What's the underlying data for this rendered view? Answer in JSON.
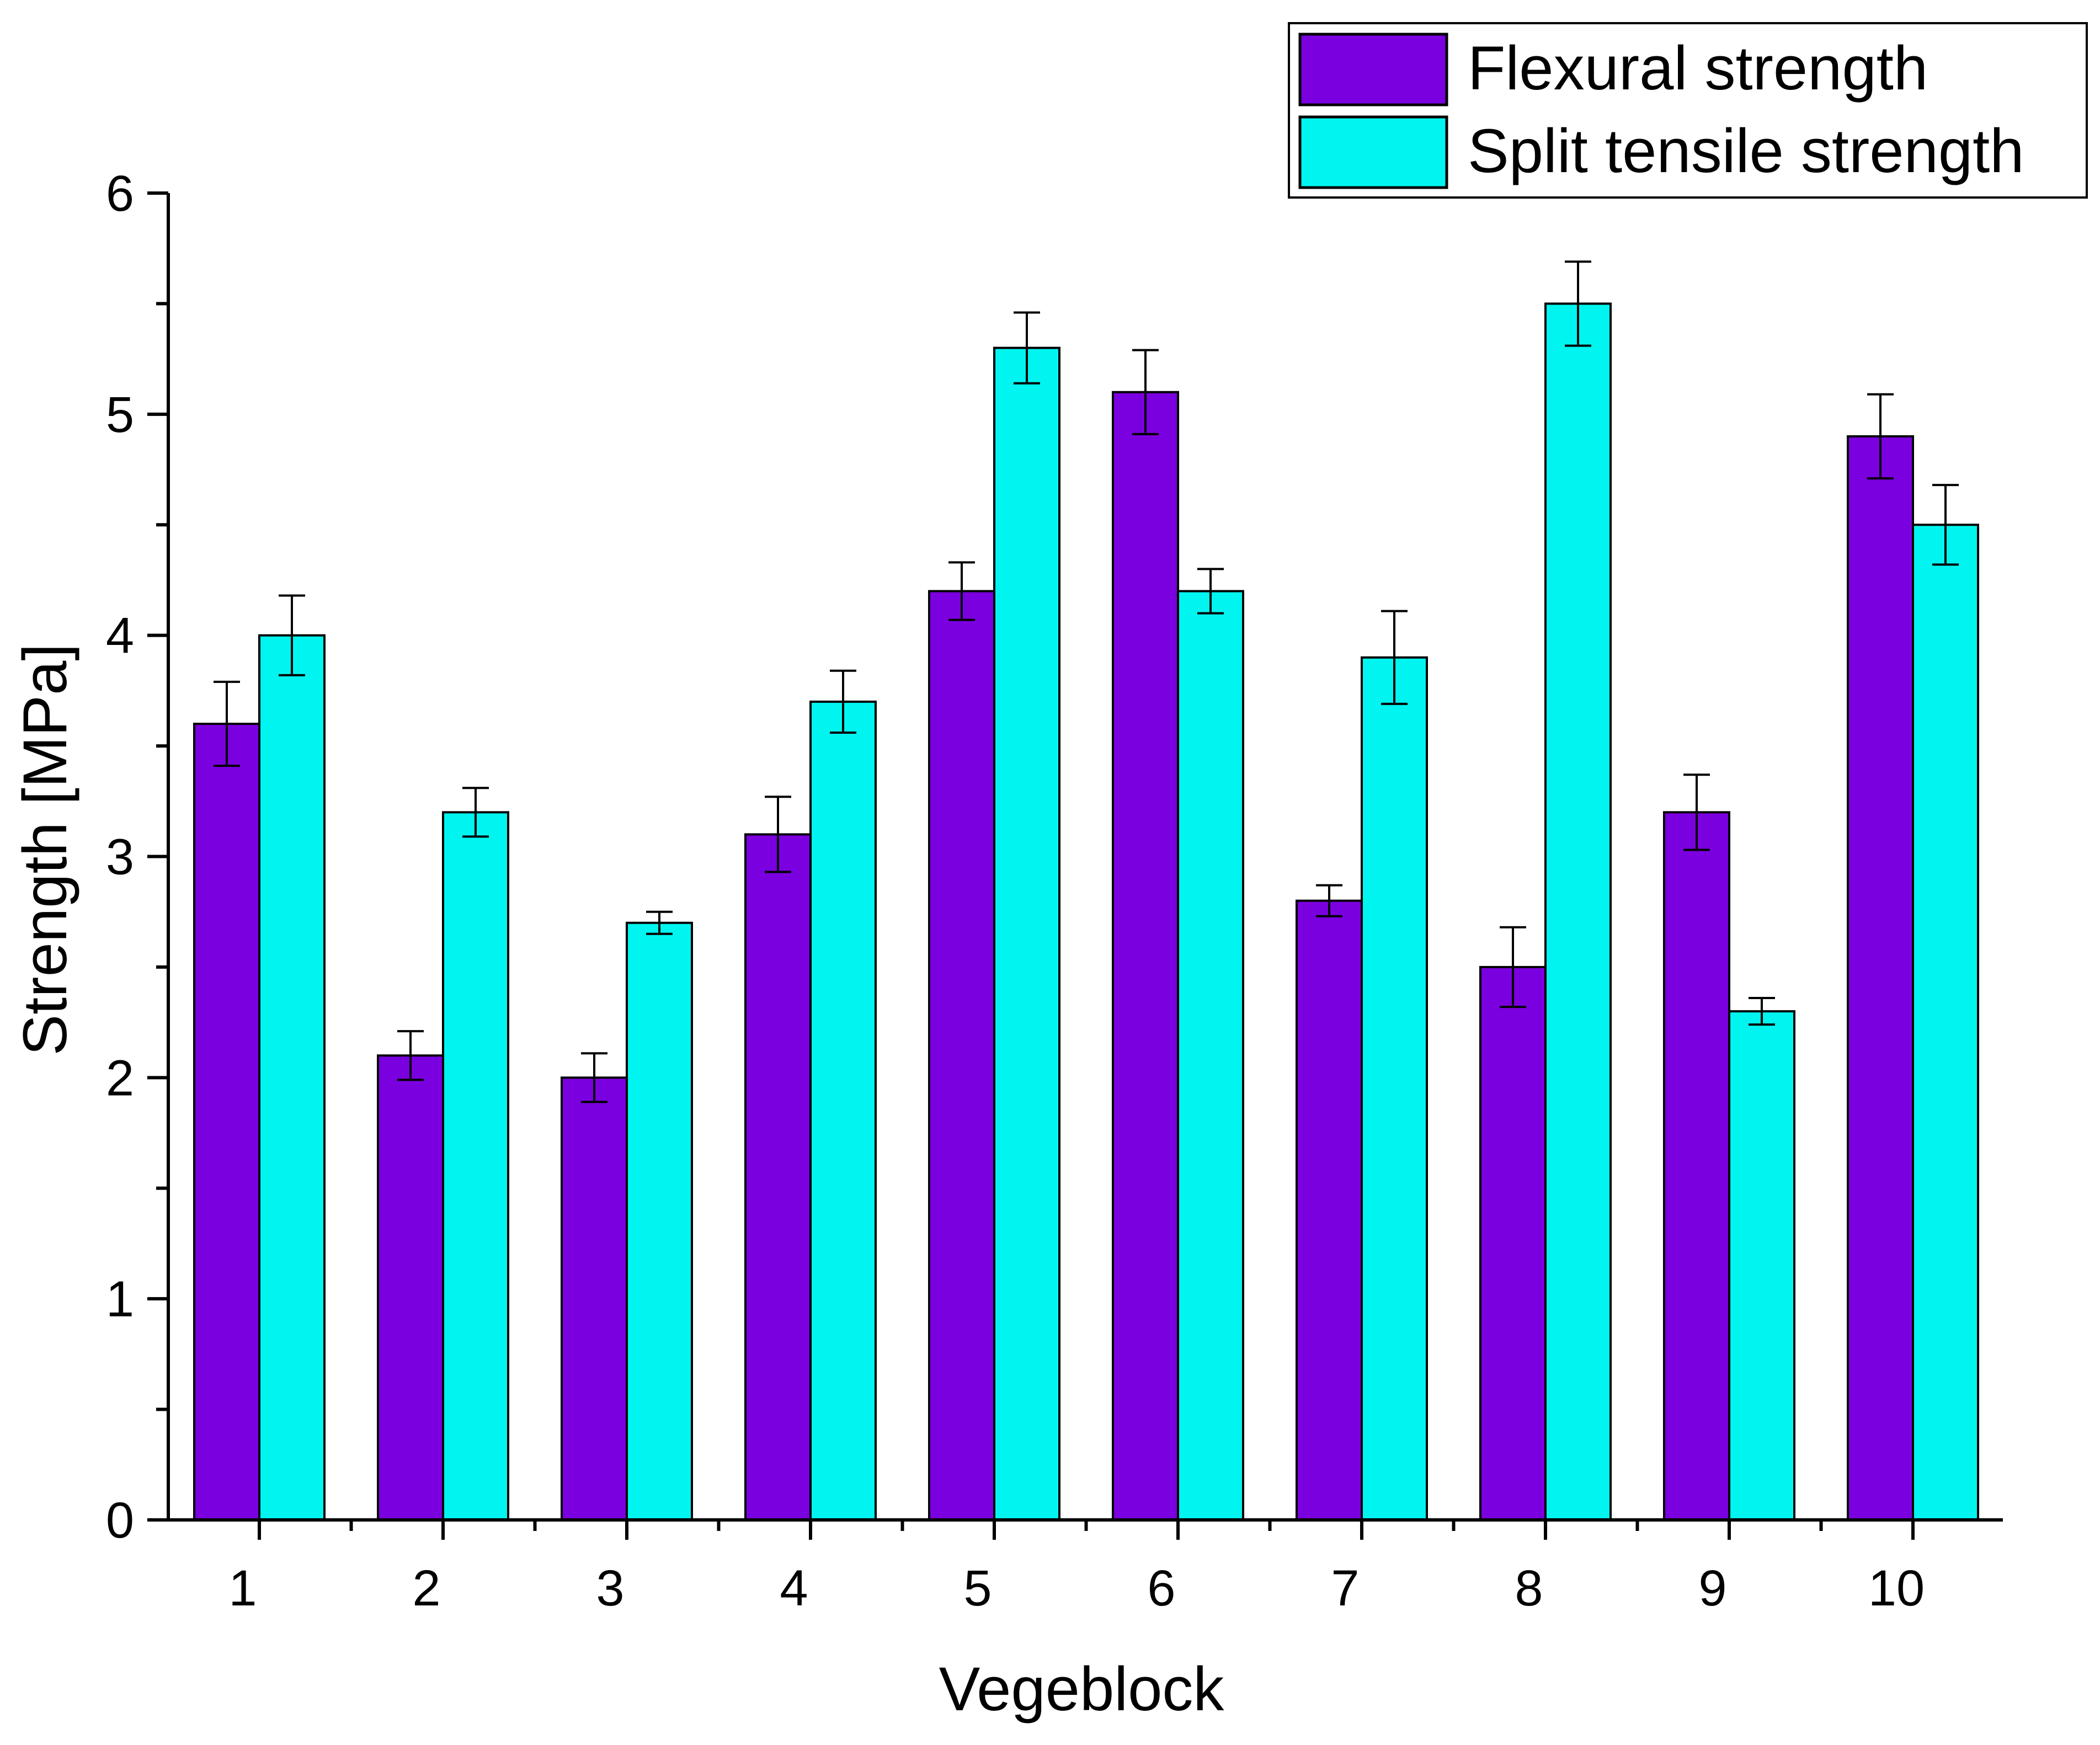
{
  "chart_data": {
    "type": "bar",
    "xlabel": "Vegeblock",
    "ylabel": "Strength [MPa]",
    "ylim": [
      0,
      6
    ],
    "yticks": [
      "0",
      "1",
      "2",
      "3",
      "4",
      "5",
      "6"
    ],
    "categories": [
      "1",
      "2",
      "3",
      "4",
      "5",
      "6",
      "7",
      "8",
      "9",
      "10"
    ],
    "legend_position": "top-right",
    "grid": false,
    "series": [
      {
        "name": "Flexural strength",
        "color": "#7b00e0",
        "values": [
          3.6,
          2.1,
          2.0,
          3.1,
          4.2,
          5.1,
          2.8,
          2.5,
          3.2,
          4.9
        ],
        "errors": [
          0.19,
          0.11,
          0.11,
          0.17,
          0.13,
          0.19,
          0.07,
          0.18,
          0.17,
          0.19
        ]
      },
      {
        "name": "Split tensile strength",
        "color": "#00f5f0",
        "values": [
          4.0,
          3.2,
          2.7,
          3.7,
          5.3,
          4.2,
          3.9,
          5.5,
          2.3,
          4.5
        ],
        "errors": [
          0.18,
          0.11,
          0.05,
          0.14,
          0.16,
          0.1,
          0.21,
          0.19,
          0.06,
          0.18
        ]
      }
    ]
  }
}
